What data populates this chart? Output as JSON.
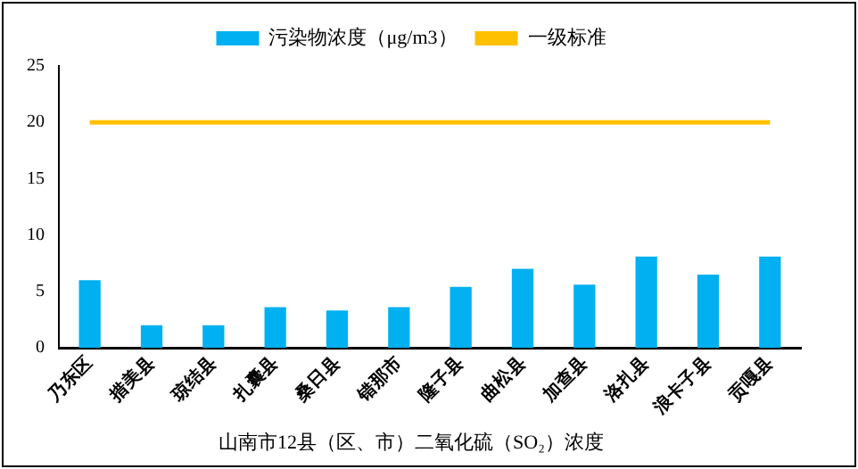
{
  "chart_data": {
    "type": "bar",
    "title": "山南市12县（区、市）二氧化硫（SO₂）浓度",
    "categories": [
      "乃东区",
      "措美县",
      "琼结县",
      "扎囊县",
      "桑日县",
      "错那市",
      "隆子县",
      "曲松县",
      "加查县",
      "洛扎县",
      "浪卡子县",
      "贡嘎县"
    ],
    "series": [
      {
        "name": "污染物浓度（μg/m3）",
        "color": "#00b0f0",
        "values": [
          6.0,
          2.0,
          2.0,
          3.6,
          3.3,
          3.6,
          5.4,
          7.0,
          5.6,
          8.1,
          6.5,
          8.1
        ]
      },
      {
        "name": "一级标准",
        "type": "line",
        "color": "#ffc000",
        "values": [
          20,
          20,
          20,
          20,
          20,
          20,
          20,
          20,
          20,
          20,
          20,
          20
        ]
      }
    ],
    "ylim": [
      0,
      25
    ],
    "yticks": [
      0,
      5,
      10,
      15,
      20,
      25
    ],
    "grid": false,
    "legend": "top",
    "marker": "none"
  }
}
